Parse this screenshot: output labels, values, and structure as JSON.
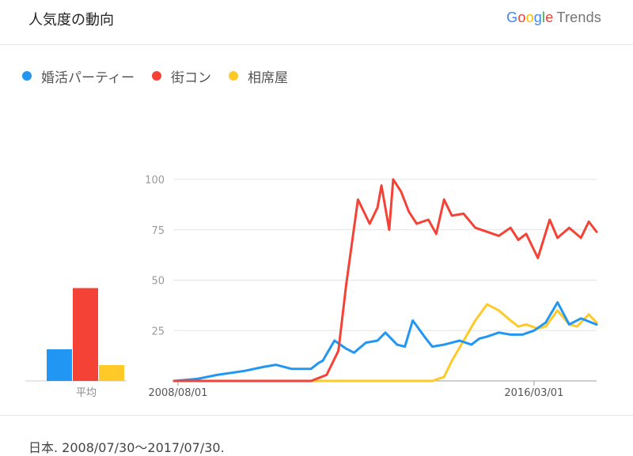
{
  "header": {
    "title": "人気度の動向",
    "logo": {
      "letters": [
        {
          "ch": "G",
          "color": "#4285F4"
        },
        {
          "ch": "o",
          "color": "#EA4335"
        },
        {
          "ch": "o",
          "color": "#FBBC05"
        },
        {
          "ch": "g",
          "color": "#4285F4"
        },
        {
          "ch": "l",
          "color": "#34A853"
        },
        {
          "ch": "e",
          "color": "#EA4335"
        }
      ],
      "trends": "Trends"
    }
  },
  "legend": [
    {
      "name": "婚活パーティー",
      "color": "#2196F3"
    },
    {
      "name": "街コン",
      "color": "#F44336"
    },
    {
      "name": "相席屋",
      "color": "#FFCA28"
    }
  ],
  "footer": "日本. 2008/07/30〜2017/07/30.",
  "chart_data": [
    {
      "type": "bar",
      "xlabel": "平均",
      "categories": [
        ""
      ],
      "series": [
        {
          "name": "婚活パーティー",
          "values": [
            16
          ],
          "color": "#2196F3"
        },
        {
          "name": "街コン",
          "values": [
            47
          ],
          "color": "#F44336"
        },
        {
          "name": "相席屋",
          "values": [
            8
          ],
          "color": "#FFCA28"
        }
      ],
      "ylim": [
        0,
        100
      ]
    },
    {
      "type": "line",
      "x_tick_labels": [
        {
          "label": "2008/08/01",
          "x": "2008-08"
        },
        {
          "label": "2016/03/01",
          "x": "2016-03"
        }
      ],
      "y_ticks": [
        100,
        75,
        50,
        25
      ],
      "ylim": [
        0,
        100
      ],
      "xlim": [
        "2008-07",
        "2017-07"
      ],
      "grid": true,
      "series": [
        {
          "name": "婚活パーティー",
          "color": "#2196F3",
          "x": [
            "2008-07",
            "2009-01",
            "2009-06",
            "2010-01",
            "2010-06",
            "2010-09",
            "2011-01",
            "2011-06",
            "2011-08",
            "2011-09",
            "2011-12",
            "2012-03",
            "2012-05",
            "2012-08",
            "2012-11",
            "2013-01",
            "2013-04",
            "2013-06",
            "2013-08",
            "2013-11",
            "2014-01",
            "2014-04",
            "2014-06",
            "2014-08",
            "2014-11",
            "2015-01",
            "2015-03",
            "2015-06",
            "2015-09",
            "2015-12",
            "2016-03",
            "2016-06",
            "2016-09",
            "2016-12",
            "2017-03",
            "2017-07"
          ],
          "values": [
            0,
            1,
            3,
            5,
            7,
            8,
            6,
            6,
            9,
            10,
            20,
            16,
            14,
            19,
            20,
            24,
            18,
            17,
            30,
            22,
            17,
            18,
            19,
            20,
            18,
            21,
            22,
            24,
            23,
            23,
            25,
            29,
            39,
            28,
            31,
            28
          ]
        },
        {
          "name": "街コン",
          "color": "#F44336",
          "x": [
            "2008-07",
            "2011-06",
            "2011-10",
            "2012-01",
            "2012-03",
            "2012-06",
            "2012-09",
            "2012-11",
            "2012-12",
            "2013-02",
            "2013-03",
            "2013-05",
            "2013-07",
            "2013-09",
            "2013-12",
            "2014-02",
            "2014-04",
            "2014-06",
            "2014-09",
            "2014-12",
            "2015-03",
            "2015-06",
            "2015-09",
            "2015-11",
            "2016-01",
            "2016-04",
            "2016-07",
            "2016-09",
            "2016-12",
            "2017-03",
            "2017-05",
            "2017-07"
          ],
          "values": [
            0,
            0,
            3,
            15,
            48,
            90,
            78,
            86,
            97,
            75,
            100,
            94,
            84,
            78,
            80,
            73,
            90,
            82,
            83,
            76,
            74,
            72,
            76,
            70,
            73,
            61,
            80,
            71,
            76,
            71,
            79,
            74
          ]
        },
        {
          "name": "相席屋",
          "color": "#FFCA28",
          "x": [
            "2008-07",
            "2014-01",
            "2014-04",
            "2014-06",
            "2014-09",
            "2014-12",
            "2015-03",
            "2015-06",
            "2015-09",
            "2015-11",
            "2016-01",
            "2016-04",
            "2016-06",
            "2016-09",
            "2016-12",
            "2017-02",
            "2017-05",
            "2017-07"
          ],
          "values": [
            0,
            0,
            2,
            10,
            20,
            30,
            38,
            35,
            30,
            27,
            28,
            26,
            27,
            35,
            28,
            27,
            33,
            29
          ]
        }
      ]
    }
  ]
}
